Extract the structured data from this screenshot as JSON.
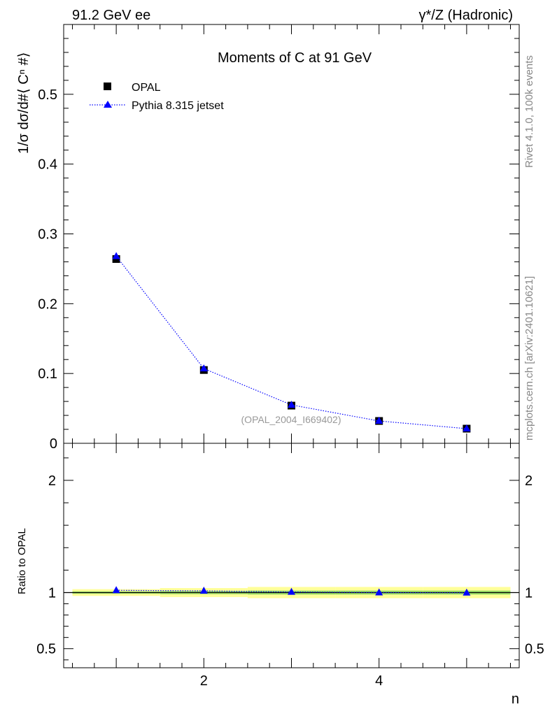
{
  "header": {
    "energy": "91.2 GeV ee",
    "process": "γ*/Z (Hadronic)"
  },
  "side": {
    "rivet": "Rivet 4.1.0,  100k events",
    "mcplots": "mcplots.cern.ch [arXiv:2401.10621]"
  },
  "chart_data": [
    {
      "type": "scatter",
      "title": "Moments of C at 91 GeV",
      "ylabel": "1/σ  dσ/d#⟨ Cⁿ #⟩",
      "xlabel": "n",
      "watermark": "(OPAL_2004_I669402)",
      "xlim": [
        0.4,
        5.6
      ],
      "ylim": [
        0,
        0.6
      ],
      "yticks": [
        0.1,
        0.2,
        0.3,
        0.4,
        0.5
      ],
      "ytick_labels": [
        "0.1",
        "0.2",
        "0.3",
        "0.4",
        "0.5"
      ],
      "y_zero_label": "0",
      "xticks": [
        2,
        4
      ],
      "xtick_labels": [
        "2",
        "4"
      ],
      "legend_position": "top-left",
      "series": [
        {
          "name": "OPAL",
          "style": "black-square-markers",
          "color": "#000000",
          "x": [
            1,
            2,
            3,
            4,
            5
          ],
          "values": [
            0.264,
            0.105,
            0.054,
            0.032,
            0.021
          ]
        },
        {
          "name": "Pythia 8.315 jetset",
          "style": "blue-dotted-line-triangles",
          "color": "#0000ff",
          "x": [
            1,
            2,
            3,
            4,
            5
          ],
          "values": [
            0.268,
            0.107,
            0.055,
            0.032,
            0.021
          ]
        }
      ]
    },
    {
      "type": "line",
      "ylabel": "Ratio to OPAL",
      "xlabel": "n",
      "ylim": [
        0.33,
        2.33
      ],
      "yticks": [
        0.5,
        1,
        2
      ],
      "ytick_labels": [
        "0.5",
        "1",
        "2"
      ],
      "band_color_outer": "#ffff99",
      "band_color_inner": "#99dd66",
      "band_half_width": [
        0.03,
        0.04,
        0.05,
        0.05,
        0.05
      ],
      "series": [
        {
          "name": "Pythia 8.315 jetset",
          "color": "#0000ff",
          "x": [
            1,
            2,
            3,
            4,
            5
          ],
          "values": [
            1.02,
            1.015,
            1.005,
            1.0,
            0.998
          ]
        }
      ]
    }
  ]
}
